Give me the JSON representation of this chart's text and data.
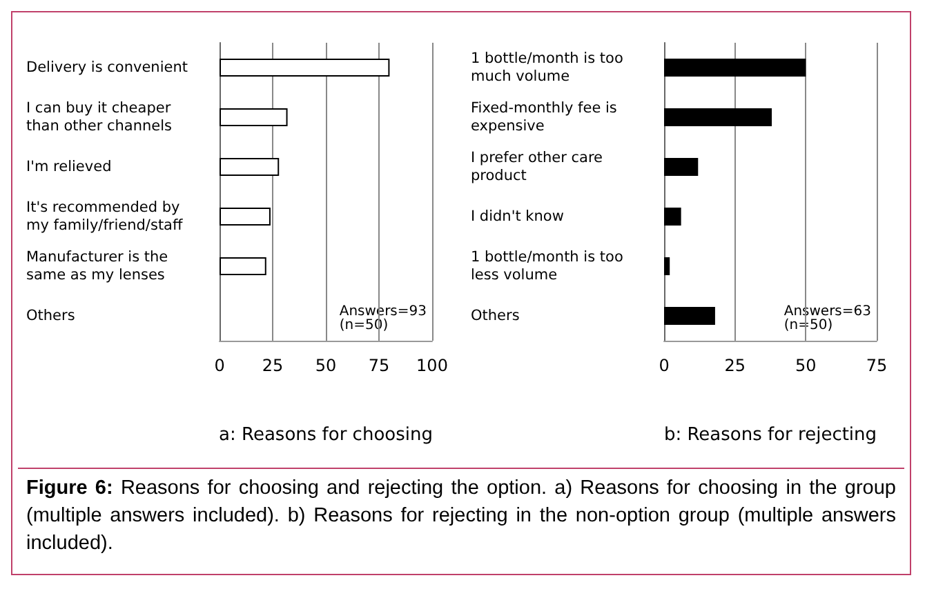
{
  "chart_data": [
    {
      "type": "bar",
      "orientation": "horizontal",
      "xlabel": "a: Reasons for choosing",
      "categories": [
        "Delivery is convenient",
        "I can buy it cheaper than other channels",
        "I'm relieved",
        "It's recommended by my family/friend/staff",
        "Manufacturer is the same as my lenses",
        "Others"
      ],
      "values": [
        80,
        32,
        28,
        24,
        22,
        null
      ],
      "color": "#ffffff",
      "xlim": [
        0,
        100
      ],
      "xticks": [
        0,
        25,
        50,
        75,
        100
      ],
      "grid": "x",
      "annotations": [
        "Answers=93\n(n=50)",
        "Figure 6:",
        "Reasons for choosing and rejecting the option. a) Reasons for choosing in the group (multiple answers included). b) Reasons for rejecting in the non-option group (multiple answers included)."
      ]
    },
    {
      "type": "bar",
      "orientation": "horizontal",
      "xlabel": "b: Reasons for rejecting",
      "categories": [
        "1 bottle/month is too much volume",
        "Fixed-monthly fee is expensive",
        "I prefer other care product",
        "I didn't know",
        "1 bottle/month is too less volume",
        "Others"
      ],
      "values": [
        50,
        38,
        12,
        6,
        2,
        18
      ],
      "color": "#000000",
      "xlim": [
        0,
        75
      ],
      "xticks": [
        0,
        25,
        50,
        75
      ],
      "grid": "x",
      "annotations": [
        "Answers=63\n(n=50)"
      ]
    }
  ]
}
